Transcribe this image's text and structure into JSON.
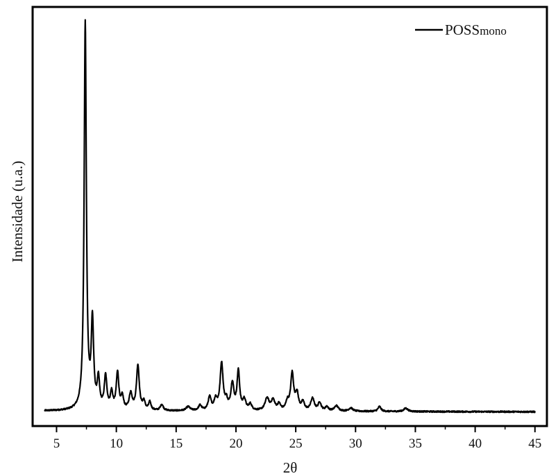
{
  "chart_data": {
    "type": "line",
    "title": "",
    "xlabel": "2θ",
    "ylabel": "Intensidade (u.a.)",
    "xlim": [
      3,
      46
    ],
    "ylim": [
      -3,
      100
    ],
    "x_ticks": [
      5,
      10,
      15,
      20,
      25,
      30,
      35,
      40,
      45
    ],
    "y_ticks_shown": false,
    "grid": false,
    "legend": {
      "placement": "top-right",
      "text_main": "POSS",
      "text_sub": "mono"
    },
    "series": [
      {
        "name": "POSSmono",
        "color": "#000000",
        "peaks": [
          [
            7.4,
            95,
            0.11
          ],
          [
            8.0,
            21,
            0.12
          ],
          [
            8.5,
            7,
            0.12
          ],
          [
            9.1,
            8,
            0.13
          ],
          [
            9.6,
            4,
            0.12
          ],
          [
            10.1,
            9,
            0.13
          ],
          [
            10.5,
            3,
            0.12
          ],
          [
            11.2,
            4,
            0.15
          ],
          [
            11.8,
            11,
            0.14
          ],
          [
            12.3,
            2,
            0.12
          ],
          [
            12.8,
            2,
            0.12
          ],
          [
            13.8,
            1.5,
            0.15
          ],
          [
            16.0,
            1,
            0.2
          ],
          [
            17.0,
            1.3,
            0.15
          ],
          [
            17.8,
            3.2,
            0.15
          ],
          [
            18.3,
            2.5,
            0.15
          ],
          [
            18.8,
            11.5,
            0.15
          ],
          [
            19.2,
            2,
            0.12
          ],
          [
            19.7,
            6.5,
            0.15
          ],
          [
            20.2,
            9.5,
            0.13
          ],
          [
            20.7,
            2.5,
            0.15
          ],
          [
            21.2,
            1.5,
            0.15
          ],
          [
            22.6,
            3,
            0.2
          ],
          [
            23.1,
            2.5,
            0.18
          ],
          [
            23.6,
            1.5,
            0.15
          ],
          [
            24.3,
            2,
            0.15
          ],
          [
            24.7,
            9,
            0.15
          ],
          [
            25.1,
            4,
            0.15
          ],
          [
            25.6,
            2,
            0.15
          ],
          [
            26.4,
            3,
            0.18
          ],
          [
            27.0,
            2,
            0.15
          ],
          [
            27.6,
            1,
            0.15
          ],
          [
            28.4,
            1.3,
            0.2
          ],
          [
            29.6,
            0.8,
            0.2
          ],
          [
            32.0,
            1.2,
            0.15
          ],
          [
            34.2,
            0.8,
            0.2
          ]
        ]
      }
    ]
  }
}
